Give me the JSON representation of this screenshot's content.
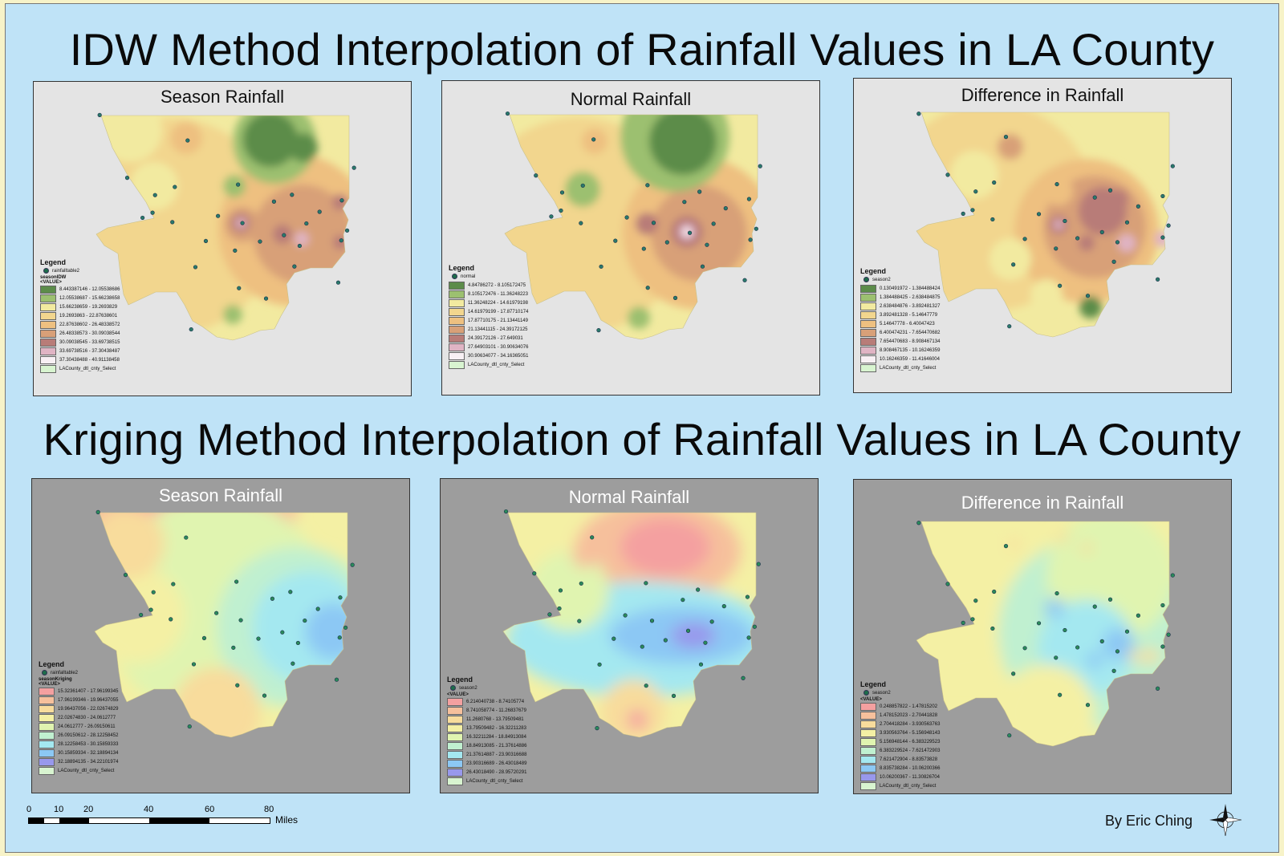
{
  "titles": {
    "idw": "IDW Method Interpolation of Rainfall Values in LA County",
    "kriging": "Kriging Method Interpolation of Rainfall Values in LA County"
  },
  "panels": [
    {
      "key": "idw-season",
      "method": "idw",
      "title": "Season Rainfall",
      "legend": {
        "heading": "Legend",
        "point_layer": "rainfalltable2",
        "raster_layer": "seasonIDW",
        "value_label": "<VALUE>",
        "classes": [
          {
            "range": "8.443387146 - 12.05538686",
            "color": "#5c8c4a"
          },
          {
            "range": "12.05538687 - 15.66238658",
            "color": "#9cc070"
          },
          {
            "range": "15.66238659 - 19.2693829",
            "color": "#f2eaa0"
          },
          {
            "range": "19.2693863 - 22.87638601",
            "color": "#f2d68e"
          },
          {
            "range": "22.87638602 - 26.48338572",
            "color": "#eec080"
          },
          {
            "range": "26.48338573 - 30.09038544",
            "color": "#d8a078"
          },
          {
            "range": "30.09038545 - 33.69738515",
            "color": "#b87c78"
          },
          {
            "range": "33.69738516 - 37.30438487",
            "color": "#e0b4c4"
          },
          {
            "range": "37.30438488 - 40.91138458",
            "color": "#f8f0f4"
          }
        ],
        "boundary_layer": "LACounty_dtl_cnty_Select"
      }
    },
    {
      "key": "idw-normal",
      "method": "idw",
      "title": "Normal Rainfall",
      "legend": {
        "heading": "Legend",
        "point_layer": "normal",
        "raster_layer": "",
        "value_label": "",
        "classes": [
          {
            "range": "4.84786272 - 8.105172475",
            "color": "#5c8c4a"
          },
          {
            "range": "8.105172476 - 11.36248223",
            "color": "#9cc070"
          },
          {
            "range": "11.36248224 - 14.61979198",
            "color": "#f2eaa0"
          },
          {
            "range": "14.61979199 - 17.87710174",
            "color": "#f2d68e"
          },
          {
            "range": "17.87710175 - 21.13441149",
            "color": "#eec080"
          },
          {
            "range": "21.13441115 - 24.39172125",
            "color": "#d8a078"
          },
          {
            "range": "24.39172126 - 27.649031",
            "color": "#b87c78"
          },
          {
            "range": "27.64903101 - 30.90634076",
            "color": "#e0b4c4"
          },
          {
            "range": "30.90634077 - 34.16365051",
            "color": "#f8f0f4"
          }
        ],
        "boundary_layer": "LACounty_dtl_cnty_Select"
      }
    },
    {
      "key": "idw-diff",
      "method": "idw",
      "title": "Difference in Rainfall",
      "legend": {
        "heading": "Legend",
        "point_layer": "season2",
        "raster_layer": "",
        "value_label": "",
        "classes": [
          {
            "range": "0.130491972 - 1.384488424",
            "color": "#5c8c4a"
          },
          {
            "range": "1.384488425 - 2.638484875",
            "color": "#9cc070"
          },
          {
            "range": "2.638484876 - 3.892481327",
            "color": "#f2eaa0"
          },
          {
            "range": "3.892481328 - 5.14647779",
            "color": "#f2d68e"
          },
          {
            "range": "5.14647778 - 6.40047423",
            "color": "#eec080"
          },
          {
            "range": "6.400474231 - 7.654470682",
            "color": "#d8a078"
          },
          {
            "range": "7.654470683 - 8.908467134",
            "color": "#b87c78"
          },
          {
            "range": "8.908467135 - 10.16246359",
            "color": "#e0b4c4"
          },
          {
            "range": "10.16246359 - 11.41646004",
            "color": "#f8f0f4"
          }
        ],
        "boundary_layer": "LACounty_dtl_cnty_Select"
      }
    },
    {
      "key": "krig-season",
      "method": "krig",
      "title": "Season Rainfall",
      "legend": {
        "heading": "Legend",
        "point_layer": "rainfalltable2",
        "raster_layer": "seasonKriging",
        "value_label": "<VALUE>",
        "classes": [
          {
            "range": "15.32361407 - 17.96199345",
            "color": "#f4a0a0"
          },
          {
            "range": "17.96199346 - 19.96437055",
            "color": "#f6c09c"
          },
          {
            "range": "19.96437056 - 22.02674829",
            "color": "#f8dc9c"
          },
          {
            "range": "22.02674830 - 24.0612777",
            "color": "#f4f0a4"
          },
          {
            "range": "24.0612777 - 26.09150611",
            "color": "#e0f4b0"
          },
          {
            "range": "26.09150612 - 28.12258452",
            "color": "#c0f0d0"
          },
          {
            "range": "28.12258453 - 30.15859333",
            "color": "#a4e8f0"
          },
          {
            "range": "30.15859334 - 32.18894134",
            "color": "#8cc8f4"
          },
          {
            "range": "32.18894135 - 34.22101974",
            "color": "#9898ec"
          }
        ],
        "boundary_layer": "LACounty_dtl_cnty_Select"
      }
    },
    {
      "key": "krig-normal",
      "method": "krig",
      "title": "Normal Rainfall",
      "legend": {
        "heading": "Legend",
        "point_layer": "season2",
        "raster_layer": "",
        "value_label": "<VALUE>",
        "classes": [
          {
            "range": "6.214040738 - 8.74105774",
            "color": "#f4a0a0"
          },
          {
            "range": "8.741058774 - 11.26837679",
            "color": "#f6c09c"
          },
          {
            "range": "11.2680768 - 13.79509481",
            "color": "#f8dc9c"
          },
          {
            "range": "13.79509482 - 16.32211283",
            "color": "#f4f0a4"
          },
          {
            "range": "16.32211284 - 18.84913084",
            "color": "#e0f4b0"
          },
          {
            "range": "18.84913085 - 21.37614886",
            "color": "#c0f0d0"
          },
          {
            "range": "21.37614887 - 23.90316688",
            "color": "#a4e8f0"
          },
          {
            "range": "23.90316689 - 26.43018489",
            "color": "#8cc8f4"
          },
          {
            "range": "26.43018490 - 28.95720291",
            "color": "#9898ec"
          }
        ],
        "boundary_layer": "LACounty_dtl_cnty_Select"
      }
    },
    {
      "key": "krig-diff",
      "method": "krig",
      "title": "Difference in Rainfall",
      "legend": {
        "heading": "Legend",
        "point_layer": "season2",
        "raster_layer": "",
        "value_label": "<VALUE>",
        "classes": [
          {
            "range": "0.248857822 - 1.47815202",
            "color": "#f4a0a0"
          },
          {
            "range": "1.478152023 - 2.70441828",
            "color": "#f6c09c"
          },
          {
            "range": "2.704418284 - 3.930563763",
            "color": "#f8dc9c"
          },
          {
            "range": "3.930563764 - 5.156948143",
            "color": "#f4f0a4"
          },
          {
            "range": "5.156948144 - 6.383229523",
            "color": "#e0f4b0"
          },
          {
            "range": "6.383229524 - 7.621472903",
            "color": "#c0f0d0"
          },
          {
            "range": "7.621472904 - 8.83573828",
            "color": "#a4e8f0"
          },
          {
            "range": "8.835738284 - 10.06200366",
            "color": "#8cc8f4"
          },
          {
            "range": "10.06200367 - 11.30826704",
            "color": "#9898ec"
          }
        ],
        "boundary_layer": "LACounty_dtl_cnty_Select"
      }
    }
  ],
  "scale": {
    "ticks": [
      "0",
      "10",
      "20",
      "40",
      "60",
      "80"
    ],
    "unit": "Miles"
  },
  "author": "By Eric Ching",
  "compass_icon": "north-arrow-icon",
  "colors": {
    "poster_bg": "#bfe3f7",
    "idw_panel_bg": "#e4e4e4",
    "kriging_panel_bg": "#9d9d9d"
  }
}
